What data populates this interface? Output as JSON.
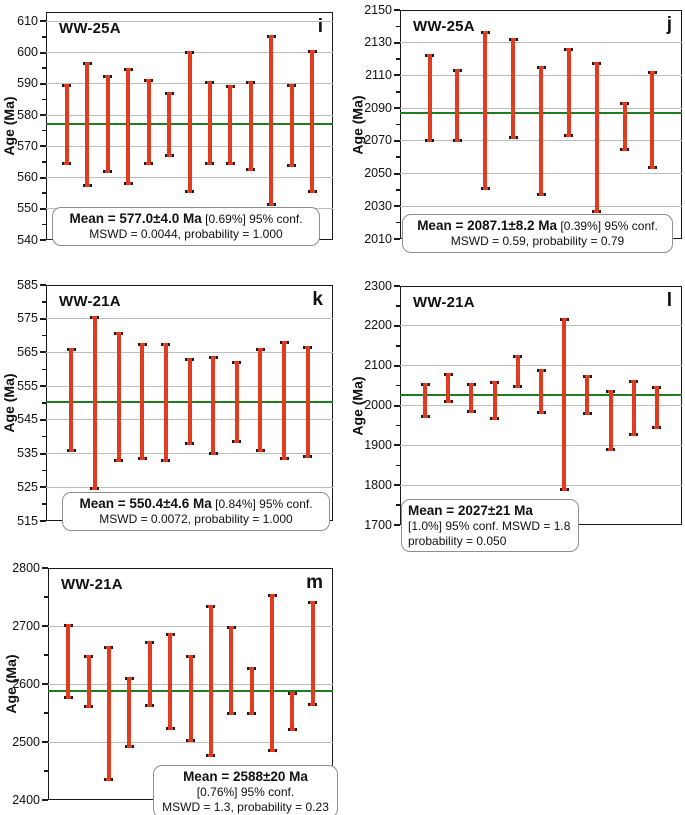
{
  "figure": {
    "background": "#ffffff",
    "y_axis_label": "Age (Ma)"
  },
  "colors": {
    "bar": "#e13b22",
    "bar_cap_tip": "#1a1a1a",
    "mean_line": "#1e7d1e",
    "gridline": "#bdbdbd",
    "plot_border": "#1a1a1a",
    "stats_box_border": "#8f8f8f"
  },
  "chart_data": [
    {
      "id": "i",
      "type": "errorbar",
      "panel_label": "i",
      "sample": "WW-25A",
      "ylabel": "Age (Ma)",
      "ylim": [
        540,
        613
      ],
      "yticks": [
        540,
        550,
        560,
        570,
        580,
        590,
        600,
        610
      ],
      "minor_tick_step": 5,
      "gridlines": [
        550,
        560,
        570,
        580,
        590,
        600,
        610
      ],
      "mean_value": 577.0,
      "bars": [
        [
          564.5,
          589.5
        ],
        [
          557.5,
          596.5
        ],
        [
          562,
          592.5
        ],
        [
          558,
          594.5
        ],
        [
          564.5,
          591
        ],
        [
          567,
          587
        ],
        [
          555.5,
          600
        ],
        [
          564.5,
          590.5
        ],
        [
          564.5,
          589
        ],
        [
          562.5,
          590.5
        ],
        [
          551.5,
          605
        ],
        [
          564,
          589.5
        ],
        [
          555.5,
          600.5
        ]
      ],
      "annotation": {
        "mean_bold": "Mean = 577.0±4.0 Ma",
        "mean_rest": " [0.69%]  95% conf.",
        "lines": [
          "MSWD = 0.0044, probability = 1.000"
        ],
        "align": "center"
      }
    },
    {
      "id": "j",
      "type": "errorbar",
      "panel_label": "j",
      "sample": "WW-25A",
      "ylabel": "Age (Ma)",
      "ylim": [
        2010,
        2150
      ],
      "yticks": [
        2010,
        2030,
        2050,
        2070,
        2090,
        2110,
        2130,
        2150
      ],
      "minor_tick_step": 10,
      "gridlines": [
        2030,
        2050,
        2070,
        2090,
        2110,
        2130
      ],
      "mean_value": 2087.1,
      "bars": [
        [
          2070,
          2122
        ],
        [
          2070,
          2113
        ],
        [
          2041,
          2136
        ],
        [
          2072,
          2132
        ],
        [
          2037,
          2115
        ],
        [
          2073,
          2126
        ],
        [
          2027,
          2117
        ],
        [
          2065,
          2093
        ],
        [
          2054,
          2112
        ]
      ],
      "annotation": {
        "mean_bold": "Mean = 2087.1±8.2  Ma",
        "mean_rest": " [0.39%]  95% conf.",
        "lines": [
          "MSWD = 0.59, probability = 0.79"
        ],
        "align": "center"
      }
    },
    {
      "id": "k",
      "type": "errorbar",
      "panel_label": "k",
      "sample": "WW-21A",
      "ylabel": "Age (Ma)",
      "ylim": [
        515,
        585
      ],
      "yticks": [
        515,
        525,
        535,
        545,
        555,
        565,
        575,
        585
      ],
      "minor_tick_step": 5,
      "gridlines": [
        525,
        535,
        545,
        555,
        565,
        575
      ],
      "mean_value": 550.4,
      "bars": [
        [
          536,
          566
        ],
        [
          524.5,
          575.5
        ],
        [
          533,
          570.5
        ],
        [
          533.5,
          567.5
        ],
        [
          533,
          567.5
        ],
        [
          538,
          563
        ],
        [
          535,
          563.5
        ],
        [
          538.5,
          562
        ],
        [
          536,
          566
        ],
        [
          533.5,
          568
        ],
        [
          534,
          566.5
        ]
      ],
      "annotation": {
        "mean_bold": "Mean = 550.4±4.6 Ma",
        "mean_rest": " [0.84%]  95% conf.",
        "lines": [
          "MSWD = 0.0072, probability = 1.000"
        ],
        "align": "center"
      }
    },
    {
      "id": "l",
      "type": "errorbar",
      "panel_label": "l",
      "sample": "WW-21A",
      "ylabel": "Age (Ma)",
      "ylim": [
        1700,
        2300
      ],
      "yticks": [
        1700,
        1800,
        1900,
        2000,
        2100,
        2200,
        2300
      ],
      "minor_tick_step": 50,
      "gridlines": [
        1800,
        1900,
        2000,
        2100,
        2200
      ],
      "mean_value": 2027,
      "bars": [
        [
          1972,
          2053
        ],
        [
          2011,
          2079
        ],
        [
          1985,
          2052
        ],
        [
          1968,
          2057
        ],
        [
          2048,
          2123
        ],
        [
          1982,
          2088
        ],
        [
          1788,
          2216
        ],
        [
          1981,
          2073
        ],
        [
          1890,
          2034
        ],
        [
          1927,
          2061
        ],
        [
          1945,
          2045
        ]
      ],
      "annotation": {
        "mean_bold": "Mean = 2027±21 Ma",
        "mean_rest": "",
        "lines": [
          "[1.0%]  95% conf. MSWD = 1.8",
          "probability = 0.050"
        ],
        "align": "left"
      }
    },
    {
      "id": "m",
      "type": "errorbar",
      "panel_label": "m",
      "sample": "WW-21A",
      "ylabel": "Age (Ma)",
      "ylim": [
        2400,
        2800
      ],
      "yticks": [
        2400,
        2500,
        2600,
        2700,
        2800
      ],
      "minor_tick_step": 50,
      "gridlines": [
        2500,
        2600,
        2700
      ],
      "mean_value": 2588,
      "bars": [
        [
          2577,
          2701
        ],
        [
          2561,
          2648
        ],
        [
          2435,
          2663
        ],
        [
          2493,
          2610
        ],
        [
          2563,
          2672
        ],
        [
          2523,
          2686
        ],
        [
          2502,
          2648
        ],
        [
          2477,
          2733
        ],
        [
          2550,
          2698
        ],
        [
          2550,
          2627
        ],
        [
          2486,
          2752
        ],
        [
          2521,
          2584
        ],
        [
          2564,
          2740
        ]
      ],
      "annotation": {
        "mean_bold": "Mean = 2588±20 Ma",
        "mean_rest": "",
        "lines": [
          "[0.76%]  95% conf.",
          "MSWD = 1.3, probability = 0.23"
        ],
        "align": "center"
      }
    }
  ]
}
